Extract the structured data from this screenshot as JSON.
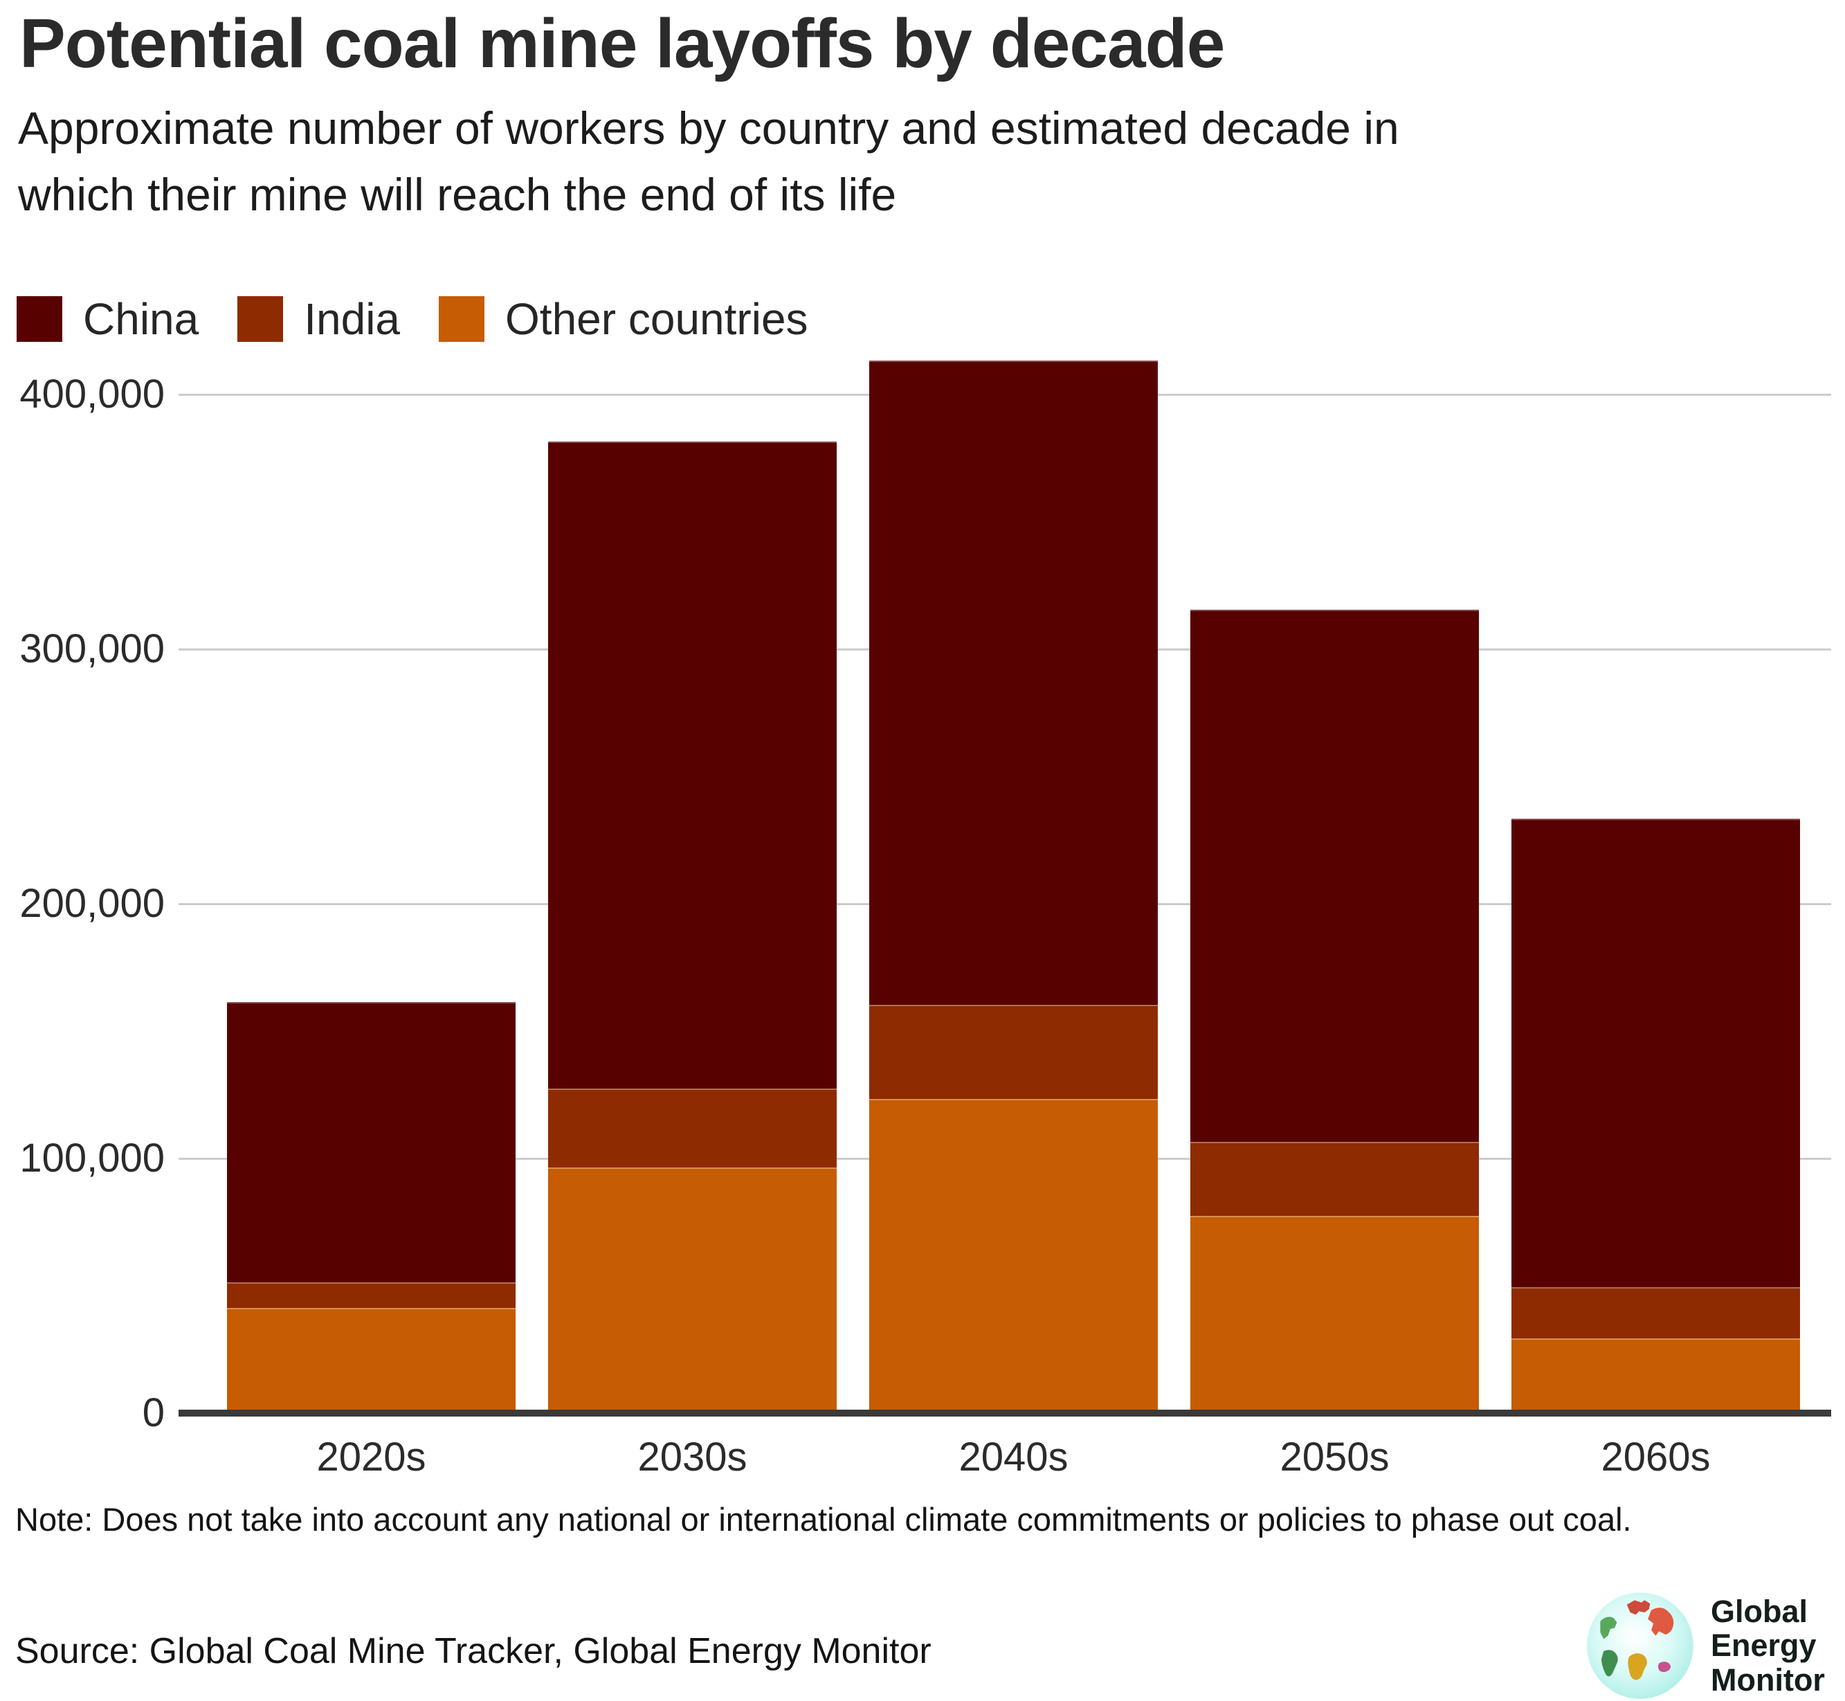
{
  "header": {
    "title": "Potential coal mine layoffs by decade",
    "subtitle_line1": "Approximate number of workers by country and estimated decade in",
    "subtitle_line2": "which their mine will reach the end of its life"
  },
  "legend": [
    {
      "label": "China",
      "color": "#570100"
    },
    {
      "label": "India",
      "color": "#8E2B00"
    },
    {
      "label": "Other countries",
      "color": "#C65C04"
    }
  ],
  "chart_data": {
    "type": "bar",
    "stacked": true,
    "title": "Potential coal mine layoffs by decade",
    "categories": [
      "2020s",
      "2030s",
      "2040s",
      "2050s",
      "2060s"
    ],
    "series": [
      {
        "name": "China",
        "color": "#570100",
        "values": [
          110000,
          254000,
          253000,
          209000,
          184000
        ]
      },
      {
        "name": "India",
        "color": "#8E2B00",
        "values": [
          10000,
          31000,
          37000,
          29000,
          20000
        ]
      },
      {
        "name": "Other countries",
        "color": "#C65C04",
        "values": [
          40000,
          95000,
          122000,
          76000,
          28000
        ]
      }
    ],
    "totals": [
      160000,
      380000,
      412000,
      314000,
      232000
    ],
    "xlabel": "",
    "ylabel": "",
    "ylim": [
      0,
      400000
    ],
    "ytick_step": 100000,
    "yticks": [
      "0",
      "100,000",
      "200,000",
      "300,000",
      "400,000"
    ],
    "grid": "horizontal",
    "legend_position": "top-left"
  },
  "footer": {
    "note": "Note: Does not take into account any national or international climate commitments or policies to phase out coal.",
    "source": "Source: Global Coal Mine Tracker, Global Energy Monitor",
    "logo_lines": [
      "Global",
      "Energy",
      "Monitor"
    ]
  }
}
